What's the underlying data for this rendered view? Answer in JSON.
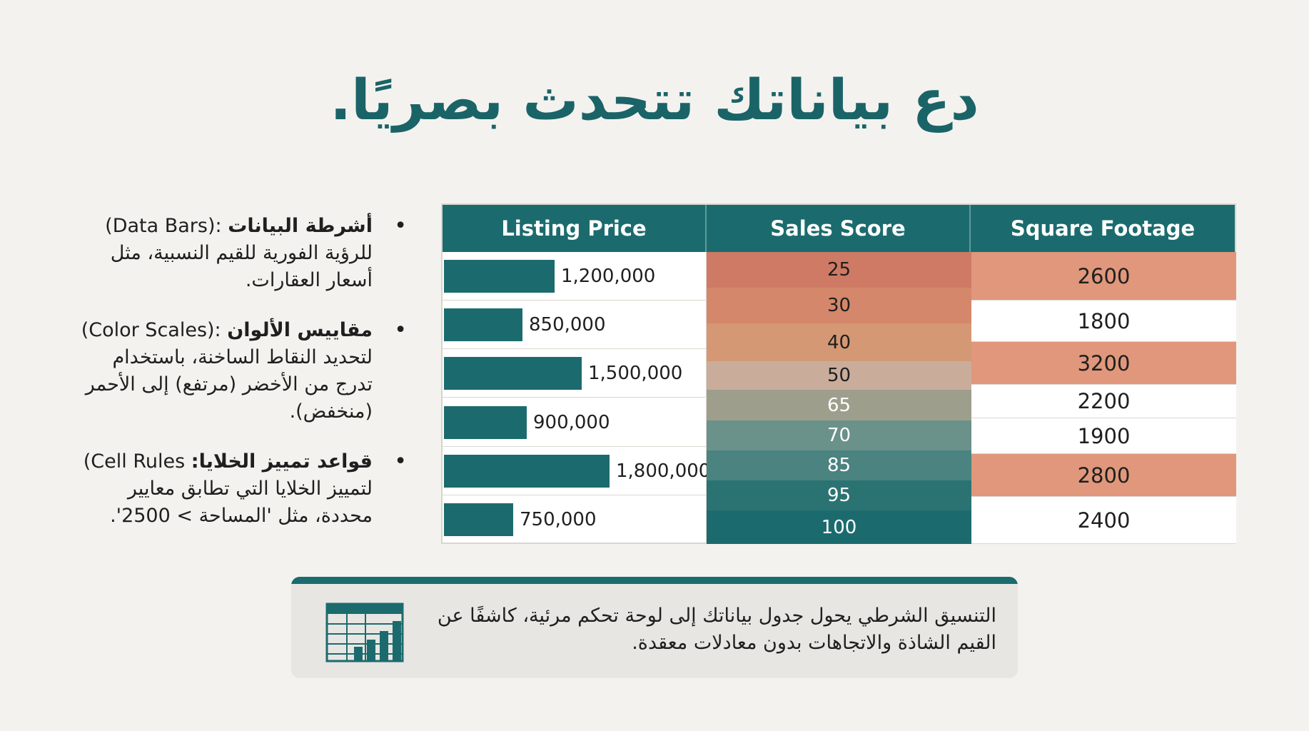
{
  "title": "دع بياناتك تتحدث بصريًا.",
  "bullets": [
    {
      "title": "أشرطة البيانات",
      "term": "(Data Bars):",
      "text": "للرؤية الفورية للقيم النسبية، مثل أسعار العقارات."
    },
    {
      "title": "مقاييس الألوان",
      "term": "(Color Scales):",
      "text": "لتحديد النقاط الساخنة، باستخدام تدرج من الأخضر (مرتفع) إلى الأحمر (منخفض)."
    },
    {
      "title": "قواعد تمييز الخلايا:",
      "term": "Cell Rules)",
      "text": "لتمييز الخلايا التي تطابق معايير محددة، مثل 'المساحة > 2500'."
    }
  ],
  "table": {
    "headers": [
      "Listing Price",
      "Sales Score",
      "Square Footage"
    ],
    "listing_price": {
      "max": 1800000,
      "values": [
        1200000,
        850000,
        1500000,
        900000,
        1800000,
        750000
      ],
      "labels": [
        "1,200,000",
        "850,000",
        "1,500,000",
        "900,000",
        "1,800,000",
        "750,000"
      ],
      "bar_color": "#1b6b6e"
    },
    "sales_score": {
      "values": [
        "25",
        "30",
        "40",
        "50",
        "65",
        "70",
        "85",
        "95",
        "100"
      ],
      "colors": [
        "#cf7a64",
        "#d4876a",
        "#d49874",
        "#c9ad9a",
        "#9e9e8d",
        "#6a918a",
        "#4a837f",
        "#2b7373",
        "#1b6b6e"
      ]
    },
    "square_footage": {
      "values": [
        "2600",
        "1800",
        "3200",
        "2200",
        "1900",
        "2800",
        "2400"
      ],
      "highlight": [
        true,
        false,
        true,
        false,
        false,
        true,
        false
      ],
      "highlight_color": "#e0977b"
    }
  },
  "footer": {
    "text": "التنسيق الشرطي يحول جدول بياناتك إلى لوحة تحكم مرئية، كاشفًا عن القيم الشاذة والاتجاهات بدون معادلات معقدة.",
    "icon": "spreadsheet-chart-icon"
  }
}
